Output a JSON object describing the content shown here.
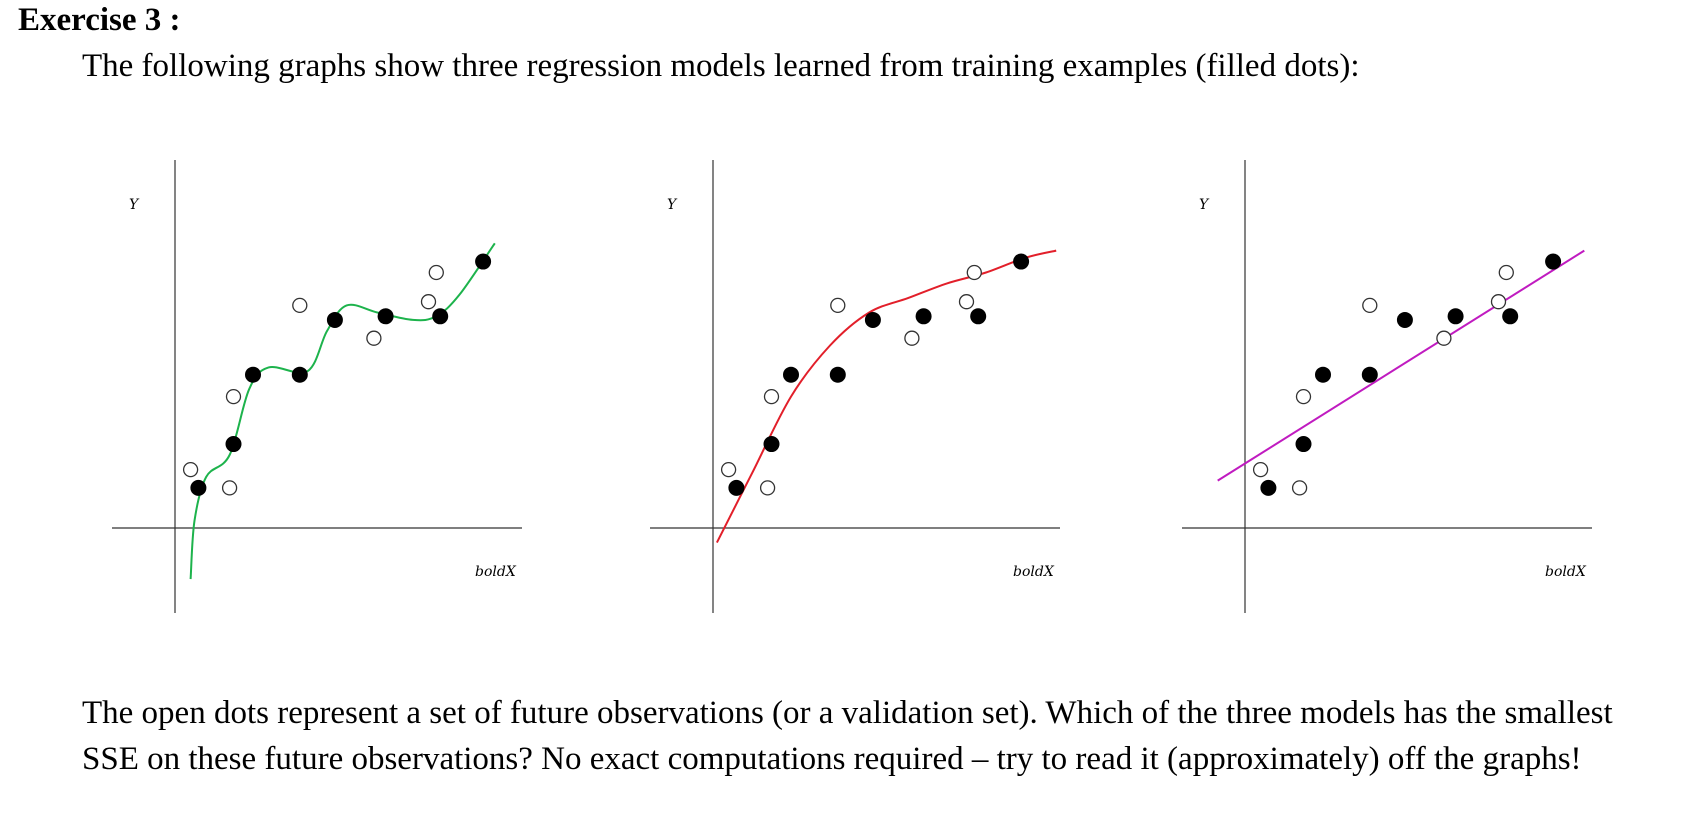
{
  "exercise": {
    "title": "Exercise 3 :",
    "intro": "The following graphs show three regression models learned from training examples (filled dots):",
    "question": "The open dots represent a set of future observations (or a validation set). Which of the three models has the smallest SSE on these future observations? No exact computations required – try to read it (approximately) off the graphs!"
  },
  "chart_data": [
    {
      "type": "scatter",
      "xlabel": "boldX",
      "ylabel": "Y",
      "curve_color": "#1db34c",
      "training": [
        [
          0.6,
          1.1
        ],
        [
          1.5,
          2.3
        ],
        [
          2.0,
          4.2
        ],
        [
          3.2,
          4.2
        ],
        [
          4.1,
          5.7
        ],
        [
          5.4,
          5.8
        ],
        [
          6.8,
          5.8
        ],
        [
          7.9,
          7.3
        ]
      ],
      "validation": [
        [
          0.4,
          1.6
        ],
        [
          1.4,
          1.1
        ],
        [
          1.5,
          3.6
        ],
        [
          3.2,
          6.1
        ],
        [
          5.1,
          5.2
        ],
        [
          6.5,
          6.2
        ],
        [
          6.7,
          7.0
        ]
      ],
      "model": [
        [
          0.4,
          -1.4
        ],
        [
          0.5,
          0.2
        ],
        [
          0.8,
          1.4
        ],
        [
          1.4,
          2.0
        ],
        [
          1.9,
          3.8
        ],
        [
          2.4,
          4.4
        ],
        [
          3.4,
          4.3
        ],
        [
          3.9,
          5.4
        ],
        [
          4.4,
          6.1
        ],
        [
          5.2,
          5.9
        ],
        [
          6.1,
          5.7
        ],
        [
          6.7,
          5.8
        ],
        [
          7.3,
          6.4
        ],
        [
          8.2,
          7.8
        ]
      ]
    },
    {
      "type": "scatter",
      "xlabel": "boldX",
      "ylabel": "Y",
      "curve_color": "#e21f2a",
      "training": [
        [
          0.6,
          1.1
        ],
        [
          1.5,
          2.3
        ],
        [
          2.0,
          4.2
        ],
        [
          3.2,
          4.2
        ],
        [
          4.1,
          5.7
        ],
        [
          5.4,
          5.8
        ],
        [
          6.8,
          5.8
        ],
        [
          7.9,
          7.3
        ]
      ],
      "validation": [
        [
          0.4,
          1.6
        ],
        [
          1.4,
          1.1
        ],
        [
          1.5,
          3.6
        ],
        [
          3.2,
          6.1
        ],
        [
          5.1,
          5.2
        ],
        [
          6.5,
          6.2
        ],
        [
          6.7,
          7.0
        ]
      ],
      "model": [
        [
          0.1,
          -0.4
        ],
        [
          1.0,
          1.5
        ],
        [
          2.0,
          3.6
        ],
        [
          3.0,
          5.0
        ],
        [
          4.0,
          5.9
        ],
        [
          5.0,
          6.3
        ],
        [
          6.0,
          6.7
        ],
        [
          7.0,
          7.0
        ],
        [
          8.0,
          7.4
        ],
        [
          8.8,
          7.6
        ]
      ]
    },
    {
      "type": "scatter",
      "xlabel": "boldX",
      "ylabel": "Y",
      "curve_color": "#c01bc0",
      "training": [
        [
          0.6,
          1.1
        ],
        [
          1.5,
          2.3
        ],
        [
          2.0,
          4.2
        ],
        [
          3.2,
          4.2
        ],
        [
          4.1,
          5.7
        ],
        [
          5.4,
          5.8
        ],
        [
          6.8,
          5.8
        ],
        [
          7.9,
          7.3
        ]
      ],
      "validation": [
        [
          0.4,
          1.6
        ],
        [
          1.4,
          1.1
        ],
        [
          1.5,
          3.6
        ],
        [
          3.2,
          6.1
        ],
        [
          5.1,
          5.2
        ],
        [
          6.5,
          6.2
        ],
        [
          6.7,
          7.0
        ]
      ],
      "model": [
        [
          -0.7,
          1.3
        ],
        [
          8.7,
          7.6
        ]
      ]
    }
  ]
}
